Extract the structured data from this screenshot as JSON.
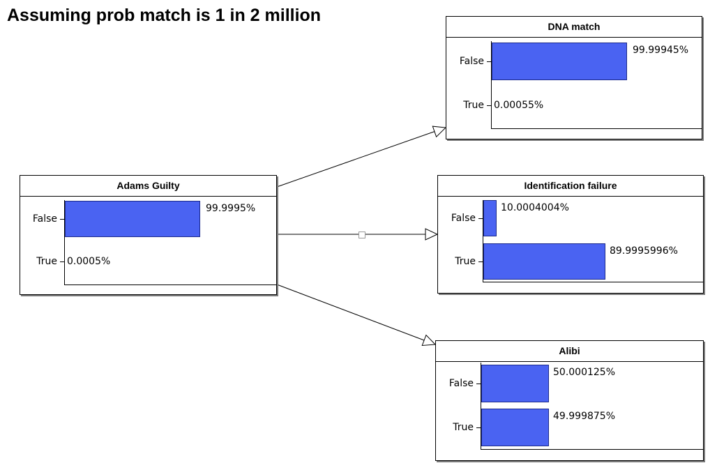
{
  "heading": "Assuming prob match is 1 in 2 million",
  "nodes": [
    {
      "id": "adams-guilty",
      "title": "Adams Guilty",
      "bar_color": "#4a63f2",
      "states": [
        {
          "label": "False",
          "value": "99.9995%",
          "prob": 0.999995
        },
        {
          "label": "True",
          "value": "0.0005%",
          "prob": 5e-06
        }
      ]
    },
    {
      "id": "dna-match",
      "title": "DNA match",
      "bar_color": "#4a63f2",
      "states": [
        {
          "label": "False",
          "value": "99.99945%",
          "prob": 0.9999945
        },
        {
          "label": "True",
          "value": "0.00055%",
          "prob": 5.5e-06
        }
      ]
    },
    {
      "id": "identification-failure",
      "title": "Identification failure",
      "bar_color": "#4a63f2",
      "states": [
        {
          "label": "False",
          "value": "10.0004004%",
          "prob": 0.100004004
        },
        {
          "label": "True",
          "value": "89.9995996%",
          "prob": 0.899995996
        }
      ]
    },
    {
      "id": "alibi",
      "title": "Alibi",
      "bar_color": "#4a63f2",
      "states": [
        {
          "label": "False",
          "value": "50.000125%",
          "prob": 0.50000125
        },
        {
          "label": "True",
          "value": "49.999875%",
          "prob": 0.49999875
        }
      ]
    }
  ],
  "edges": [
    {
      "from": "adams-guilty",
      "to": "dna-match"
    },
    {
      "from": "adams-guilty",
      "to": "identification-failure"
    },
    {
      "from": "adams-guilty",
      "to": "alibi"
    }
  ]
}
